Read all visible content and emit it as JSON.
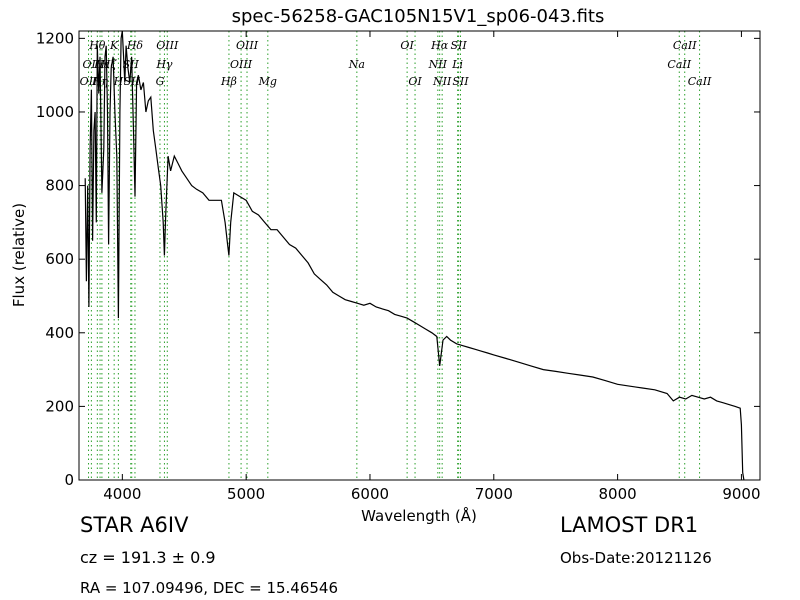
{
  "chart_data": {
    "type": "line",
    "title": "spec-56258-GAC105N15V1_sp06-043.fits",
    "xlabel": "Wavelength (Å)",
    "ylabel": "Flux (relative)",
    "xlim": [
      3650,
      9150
    ],
    "ylim": [
      0,
      1220
    ],
    "xticks": [
      4000,
      5000,
      6000,
      7000,
      8000,
      9000
    ],
    "yticks": [
      0,
      200,
      400,
      600,
      800,
      1000,
      1200
    ],
    "grid": false,
    "line_color": "#000000",
    "marker_color": "#2ca02c",
    "series": [
      {
        "x": [
          3700,
          3710,
          3720,
          3730,
          3740,
          3750,
          3760,
          3770,
          3780,
          3790,
          3798,
          3810,
          3820,
          3835,
          3850,
          3860,
          3870,
          3880,
          3889,
          3900,
          3910,
          3925,
          3940,
          3955,
          3968,
          3980,
          3990,
          4000,
          4010,
          4020,
          4030,
          4045,
          4060,
          4075,
          4090,
          4102,
          4115,
          4130,
          4150,
          4170,
          4190,
          4210,
          4230,
          4250,
          4270,
          4290,
          4310,
          4330,
          4340,
          4350,
          4370,
          4390,
          4420,
          4450,
          4480,
          4520,
          4560,
          4600,
          4650,
          4700,
          4750,
          4800,
          4830,
          4850,
          4861,
          4875,
          4900,
          4950,
          5000,
          5050,
          5100,
          5150,
          5200,
          5250,
          5300,
          5350,
          5400,
          5450,
          5500,
          5550,
          5600,
          5650,
          5700,
          5750,
          5800,
          5850,
          5900,
          5950,
          6000,
          6050,
          6100,
          6150,
          6200,
          6250,
          6300,
          6350,
          6400,
          6450,
          6500,
          6540,
          6563,
          6590,
          6620,
          6650,
          6700,
          6750,
          6800,
          6850,
          6900,
          6950,
          7000,
          7100,
          7200,
          7300,
          7400,
          7500,
          7600,
          7700,
          7800,
          7900,
          8000,
          8100,
          8200,
          8300,
          8400,
          8450,
          8500,
          8550,
          8600,
          8650,
          8700,
          8750,
          8800,
          8850,
          8900,
          8950,
          8990,
          9000,
          9010,
          9020
        ],
        "y": [
          820,
          540,
          800,
          470,
          900,
          1060,
          650,
          950,
          1000,
          700,
          1180,
          1050,
          1150,
          780,
          900,
          1150,
          1180,
          1000,
          640,
          1000,
          1120,
          1150,
          1000,
          880,
          440,
          1000,
          1200,
          1220,
          1150,
          1080,
          1180,
          1120,
          1080,
          1150,
          950,
          770,
          1080,
          1100,
          1060,
          1080,
          1000,
          1030,
          1040,
          950,
          900,
          850,
          800,
          700,
          610,
          720,
          880,
          840,
          880,
          860,
          840,
          820,
          800,
          790,
          780,
          760,
          760,
          760,
          700,
          640,
          610,
          700,
          780,
          770,
          760,
          730,
          720,
          700,
          680,
          680,
          660,
          640,
          630,
          610,
          590,
          560,
          545,
          530,
          510,
          500,
          490,
          485,
          480,
          475,
          480,
          470,
          465,
          460,
          450,
          445,
          440,
          430,
          420,
          410,
          400,
          390,
          310,
          380,
          390,
          380,
          370,
          365,
          360,
          355,
          350,
          345,
          340,
          330,
          320,
          310,
          300,
          295,
          290,
          285,
          280,
          270,
          260,
          255,
          250,
          245,
          235,
          215,
          225,
          220,
          230,
          225,
          220,
          225,
          215,
          210,
          205,
          200,
          195,
          150,
          20,
          0
        ]
      }
    ],
    "line_markers": [
      {
        "x": 3727,
        "label": "OII",
        "row": 2
      },
      {
        "x": 3750,
        "label": "OII",
        "row": 1
      },
      {
        "x": 3798,
        "label": "Hθ",
        "row": 0
      },
      {
        "x": 3820,
        "label": "Hη",
        "row": 2
      },
      {
        "x": 3835,
        "label": "Hε",
        "row": 1
      },
      {
        "x": 3889,
        "label": "Hζ",
        "row": 1
      },
      {
        "x": 3934,
        "label": "K",
        "row": 0
      },
      {
        "x": 3968,
        "label": "H",
        "row": 2
      },
      {
        "x": 4068,
        "label": "SII",
        "row": 1
      },
      {
        "x": 4076,
        "label": "SII",
        "row": 2
      },
      {
        "x": 4102,
        "label": "Hδ",
        "row": 0
      },
      {
        "x": 4304,
        "label": "G",
        "row": 2
      },
      {
        "x": 4340,
        "label": "Hγ",
        "row": 1
      },
      {
        "x": 4363,
        "label": "OIII",
        "row": 0
      },
      {
        "x": 4861,
        "label": "Hβ",
        "row": 2
      },
      {
        "x": 4959,
        "label": "OIII",
        "row": 1
      },
      {
        "x": 5007,
        "label": "OIII",
        "row": 0
      },
      {
        "x": 5175,
        "label": "Mg",
        "row": 2
      },
      {
        "x": 5894,
        "label": "Na",
        "row": 1
      },
      {
        "x": 6300,
        "label": "OI",
        "row": 0
      },
      {
        "x": 6364,
        "label": "OI",
        "row": 2
      },
      {
        "x": 6548,
        "label": "NII",
        "row": 1
      },
      {
        "x": 6563,
        "label": "Hα",
        "row": 0
      },
      {
        "x": 6583,
        "label": "NII",
        "row": 2
      },
      {
        "x": 6708,
        "label": "Li",
        "row": 1
      },
      {
        "x": 6716,
        "label": "SII",
        "row": 0
      },
      {
        "x": 6731,
        "label": "SII",
        "row": 2
      },
      {
        "x": 8498,
        "label": "CaII",
        "row": 1
      },
      {
        "x": 8542,
        "label": "CaII",
        "row": 0
      },
      {
        "x": 8662,
        "label": "CaII",
        "row": 2
      }
    ]
  },
  "info": {
    "object": "STAR   A6IV",
    "survey": "LAMOST DR1",
    "cz": "cz = 191.3 ± 0.9",
    "obs_date": "Obs-Date:20121126",
    "radec": "RA = 107.09496, DEC = 15.46546"
  }
}
